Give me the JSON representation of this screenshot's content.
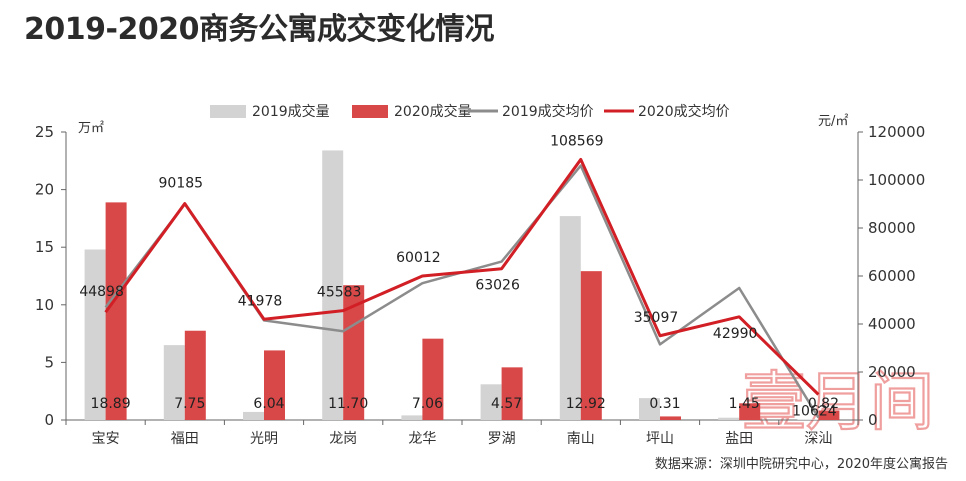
{
  "title": "2019-2020商务公寓成交变化情况",
  "source": "数据来源：深圳中院研究中心，2020年度公寓报告",
  "watermark": "壹月间",
  "colors": {
    "bar2019": "#d3d3d3",
    "bar2020": "#d94848",
    "line2019": "#8c8c8c",
    "line2020": "#d11f25"
  },
  "chart_data": {
    "type": "bar",
    "categories": [
      "宝安",
      "福田",
      "光明",
      "龙岗",
      "龙华",
      "罗湖",
      "南山",
      "坪山",
      "盐田",
      "深汕"
    ],
    "y_left": {
      "unit": "万㎡",
      "range": [
        0,
        25
      ],
      "ticks": [
        0,
        5,
        10,
        15,
        20,
        25
      ]
    },
    "y_right": {
      "unit": "元/㎡",
      "range": [
        0,
        120000
      ],
      "ticks": [
        0,
        20000,
        40000,
        60000,
        80000,
        100000,
        120000
      ]
    },
    "legend": [
      "2019成交量",
      "2020成交量",
      "2019成交均价",
      "2020成交均价"
    ],
    "legend_position": "top",
    "grid": false,
    "series": [
      {
        "name": "2019成交量",
        "type": "bar",
        "axis": "left",
        "values": [
          14.8,
          6.5,
          0.7,
          23.4,
          0.4,
          3.1,
          17.7,
          1.9,
          0.2,
          0.05
        ]
      },
      {
        "name": "2020成交量",
        "type": "bar",
        "axis": "left",
        "values": [
          18.89,
          7.75,
          6.04,
          11.7,
          7.06,
          4.57,
          12.92,
          0.31,
          1.45,
          0.82
        ],
        "labels": [
          "18.89",
          "7.75",
          "6.04",
          "11.70",
          "7.06",
          "4.57",
          "12.92",
          "0.31",
          "1.45",
          "0.82"
        ]
      },
      {
        "name": "2019成交均价",
        "type": "line",
        "axis": "right",
        "values": [
          47000,
          90000,
          41500,
          37000,
          57000,
          66000,
          106000,
          31500,
          55000,
          1000
        ]
      },
      {
        "name": "2020成交均价",
        "type": "line",
        "axis": "right",
        "values": [
          44898,
          90185,
          41978,
          45583,
          60012,
          63026,
          108569,
          35097,
          42990,
          10624
        ],
        "labels": [
          "44898",
          "90185",
          "41978",
          "45583",
          "60012",
          "63026",
          "108569",
          "35097",
          "42990",
          "10624"
        ]
      }
    ]
  }
}
